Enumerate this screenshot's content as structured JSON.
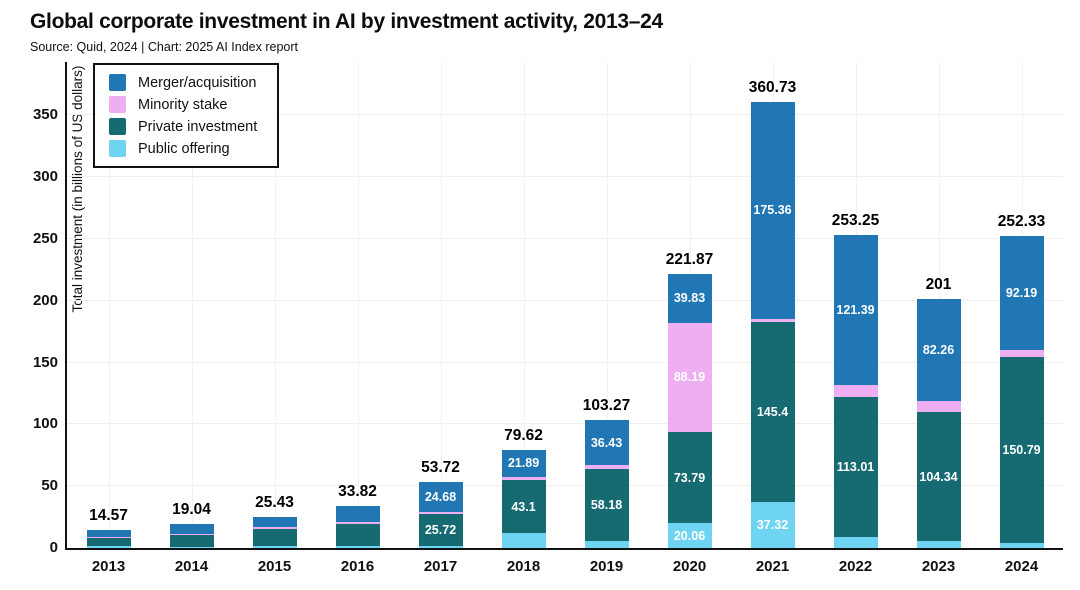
{
  "page": {
    "title": "Global corporate investment in AI by investment activity, 2013–24",
    "source": "Source: Quid, 2024 | Chart: 2025 AI Index report"
  },
  "colors": {
    "merger_acquisition": "#2177b4",
    "minority_stake": "#edaff2",
    "private_investment": "#166b73",
    "public_offering": "#6fd4f1",
    "axis": "#111111",
    "grid": "#f0f0f0"
  },
  "legend": {
    "items": [
      {
        "key": "merger_acquisition",
        "label": "Merger/acquisition",
        "color": "#2177b4"
      },
      {
        "key": "minority_stake",
        "label": "Minority stake",
        "color": "#edaff2"
      },
      {
        "key": "private_investment",
        "label": "Private investment",
        "color": "#166b73"
      },
      {
        "key": "public_offering",
        "label": "Public offering",
        "color": "#6fd4f1"
      }
    ]
  },
  "chart_data": {
    "type": "bar",
    "stacked": true,
    "title": "Global corporate investment in AI by investment activity, 2013–24",
    "xlabel": "",
    "ylabel": "Total investment (in billions of US dollars)",
    "ylim": [
      0,
      393
    ],
    "yticks": [
      0,
      50,
      100,
      150,
      200,
      250,
      300,
      350
    ],
    "grid": true,
    "legend_position": "top-left",
    "categories": [
      "2013",
      "2014",
      "2015",
      "2016",
      "2017",
      "2018",
      "2019",
      "2020",
      "2021",
      "2022",
      "2023",
      "2024"
    ],
    "series": [
      {
        "name": "Public offering",
        "key": "public_offering",
        "color": "#6fd4f1",
        "values": [
          1.37,
          1.04,
          1.43,
          1.92,
          1.82,
          12.0,
          5.76,
          20.06,
          37.32,
          9.05,
          5.6,
          3.95
        ],
        "labels": [
          null,
          null,
          null,
          null,
          null,
          null,
          null,
          "20.06",
          "37.32",
          null,
          null,
          null
        ]
      },
      {
        "name": "Private investment",
        "key": "private_investment",
        "color": "#166b73",
        "values": [
          6.5,
          9.5,
          13.6,
          17.3,
          25.72,
          43.1,
          58.18,
          73.79,
          145.4,
          113.01,
          104.34,
          150.79
        ],
        "labels": [
          null,
          null,
          null,
          null,
          "25.72",
          "43.1",
          "58.18",
          "73.79",
          "145.4",
          "113.01",
          "104.34",
          "150.79"
        ]
      },
      {
        "name": "Minority stake",
        "key": "minority_stake",
        "color": "#edaff2",
        "values": [
          1.2,
          1.0,
          1.6,
          1.6,
          1.5,
          2.63,
          2.9,
          88.19,
          2.65,
          9.8,
          8.8,
          5.4
        ],
        "labels": [
          null,
          null,
          null,
          null,
          null,
          null,
          null,
          "88.19",
          null,
          null,
          null,
          null
        ]
      },
      {
        "name": "Merger/acquisition",
        "key": "merger_acquisition",
        "color": "#2177b4",
        "values": [
          5.5,
          7.5,
          8.8,
          13.0,
          24.68,
          21.89,
          36.43,
          39.83,
          175.36,
          121.39,
          82.26,
          92.19
        ],
        "labels": [
          null,
          null,
          null,
          null,
          "24.68",
          "21.89",
          "36.43",
          "39.83",
          "175.36",
          "121.39",
          "82.26",
          "92.19"
        ]
      }
    ],
    "totals": [
      "14.57",
      "19.04",
      "25.43",
      "33.82",
      "53.72",
      "79.62",
      "103.27",
      "221.87",
      "360.73",
      "253.25",
      "201",
      "252.33"
    ]
  }
}
